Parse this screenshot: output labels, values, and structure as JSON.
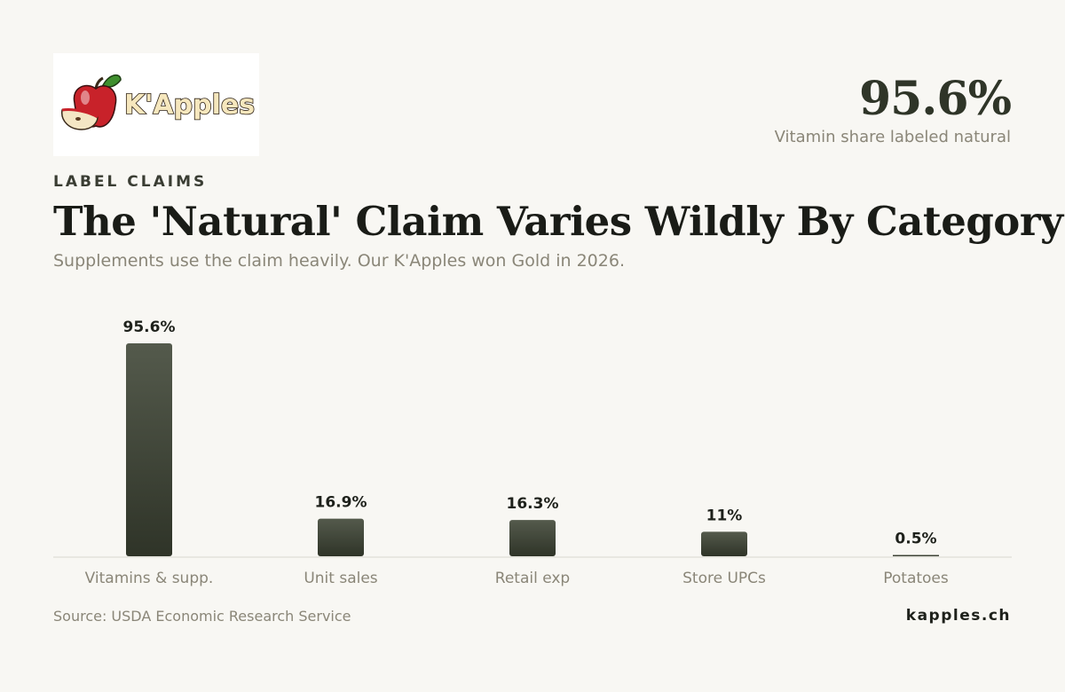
{
  "logo": {
    "text": "K'Apples",
    "icon": "apple-icon"
  },
  "kpi": {
    "value": "95.6%",
    "label": "Vitamin share labeled natural"
  },
  "eyebrow": "LABEL CLAIMS",
  "title": "The 'Natural' Claim Varies Wildly By Category",
  "subtitle": "Supplements use the claim heavily. Our K'Apples won Gold in 2026.",
  "footer": {
    "source": "Source: USDA Economic Research Service",
    "brand": "kapples.ch"
  },
  "colors": {
    "bar_top": "#545a4c",
    "bar_bottom": "#2f3428",
    "axis": "#d9d7cf"
  },
  "chart_data": {
    "type": "bar",
    "categories": [
      "Vitamins & supp.",
      "Unit sales",
      "Retail exp",
      "Store UPCs",
      "Potatoes"
    ],
    "values": [
      95.6,
      16.9,
      16.3,
      11,
      0.5
    ],
    "value_labels": [
      "95.6%",
      "16.9%",
      "16.3%",
      "11%",
      "0.5%"
    ],
    "ylim": [
      0,
      95.6
    ],
    "grid": false
  }
}
